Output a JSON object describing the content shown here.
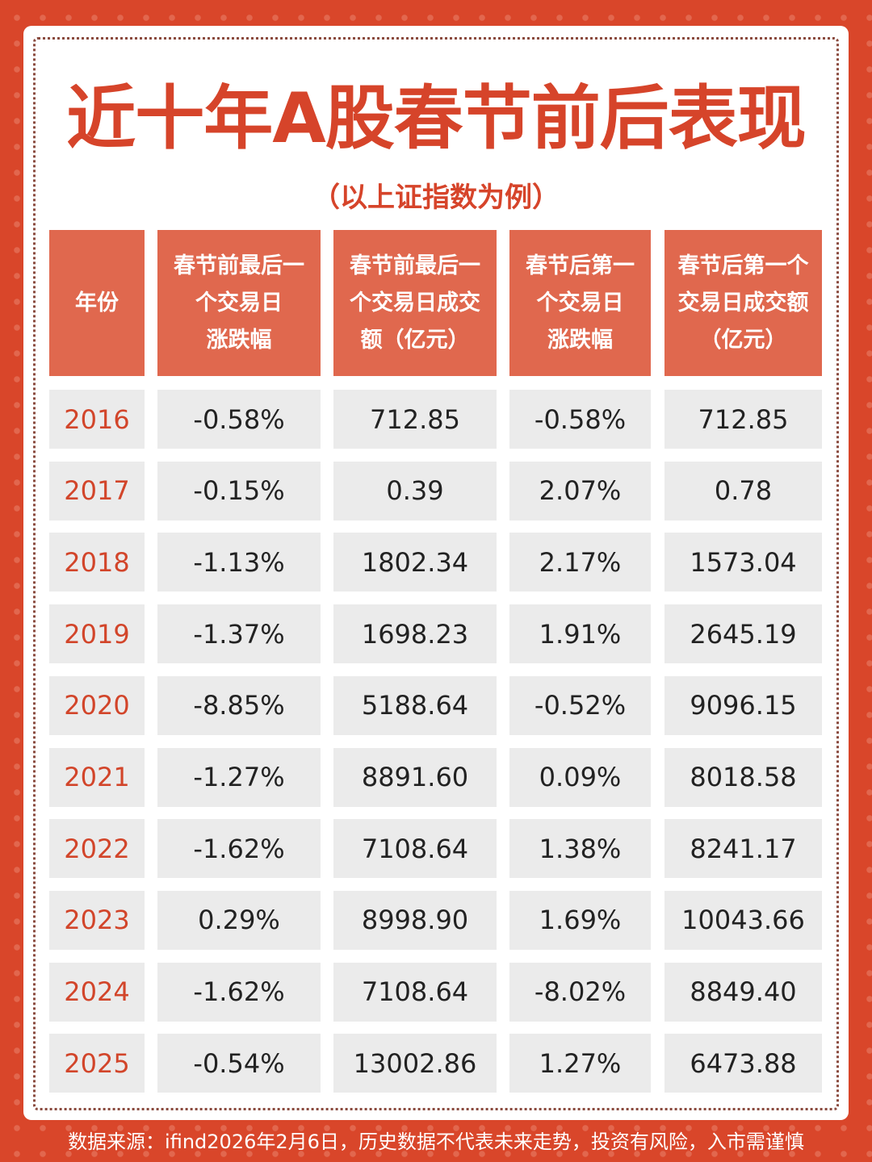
{
  "title": "近十年A股春节前后表现",
  "subtitle": "（以上证指数为例）",
  "colors": {
    "background": "#d9462a",
    "header": "#e0684e",
    "cell": "#ebebeb",
    "accent": "#d6442a"
  },
  "table": {
    "headers": [
      "年份",
      "春节前最后一个交易日涨跌幅",
      "春节前最后一个交易日成交额（亿元）",
      "春节后第一个交易日涨跌幅",
      "春节后第一个交易日成交额（亿元）"
    ],
    "rows": [
      [
        "2016",
        "-0.58%",
        "712.85",
        "-0.58%",
        "712.85"
      ],
      [
        "2017",
        "-0.15%",
        "0.39",
        "2.07%",
        "0.78"
      ],
      [
        "2018",
        "-1.13%",
        "1802.34",
        "2.17%",
        "1573.04"
      ],
      [
        "2019",
        "-1.37%",
        "1698.23",
        "1.91%",
        "2645.19"
      ],
      [
        "2020",
        "-8.85%",
        "5188.64",
        "-0.52%",
        "9096.15"
      ],
      [
        "2021",
        "-1.27%",
        "8891.60",
        "0.09%",
        "8018.58"
      ],
      [
        "2022",
        "-1.62%",
        "7108.64",
        "1.38%",
        "8241.17"
      ],
      [
        "2023",
        "0.29%",
        "8998.90",
        "1.69%",
        "10043.66"
      ],
      [
        "2024",
        "-1.62%",
        "7108.64",
        "-8.02%",
        "8849.40"
      ],
      [
        "2025",
        "-0.54%",
        "13002.86",
        "1.27%",
        "6473.88"
      ]
    ]
  },
  "footer": "数据来源：ifind2026年2月6日，历史数据不代表未来走势，投资有风险，入市需谨慎"
}
